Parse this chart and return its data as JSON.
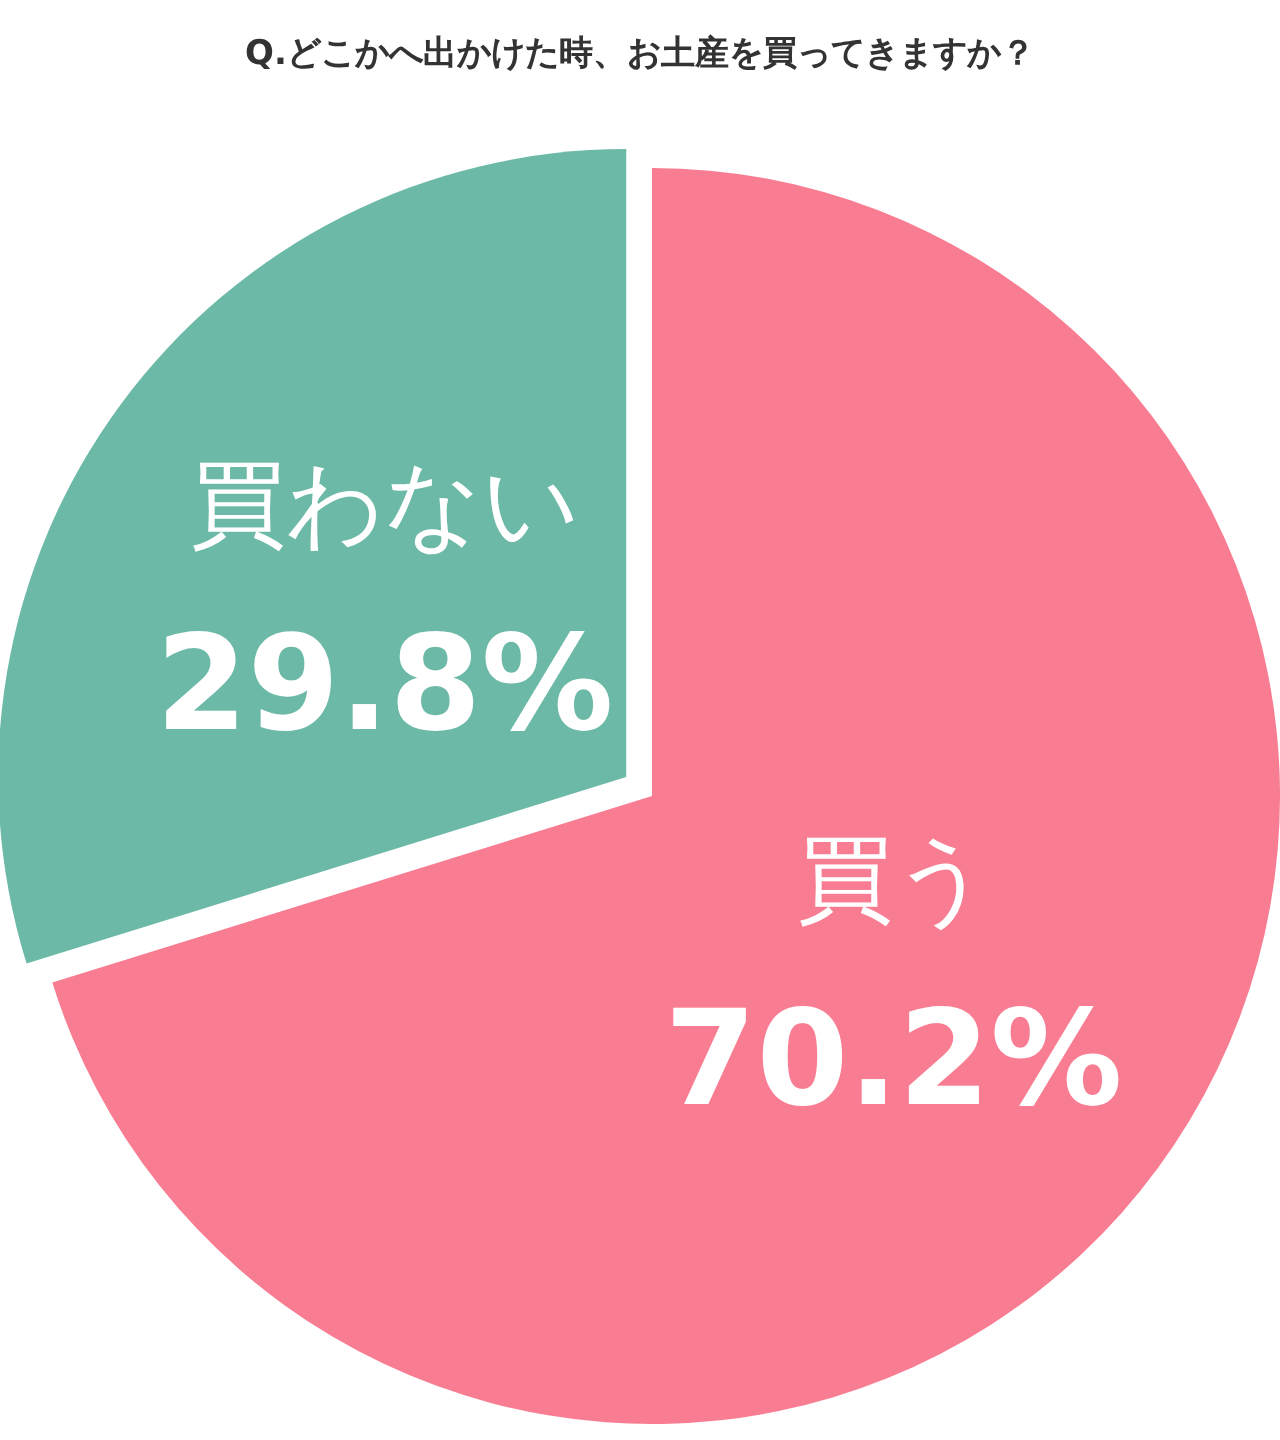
{
  "chart_data": {
    "type": "pie",
    "title": "Q.どこかへ出かけた時、お土産を買ってきますか？",
    "categories": [
      "買う",
      "買わない"
    ],
    "values": [
      70.2,
      29.8
    ],
    "colors": [
      "#f97d92",
      "#6bb9a6"
    ],
    "value_labels": [
      "70.2%",
      "29.8%"
    ]
  }
}
